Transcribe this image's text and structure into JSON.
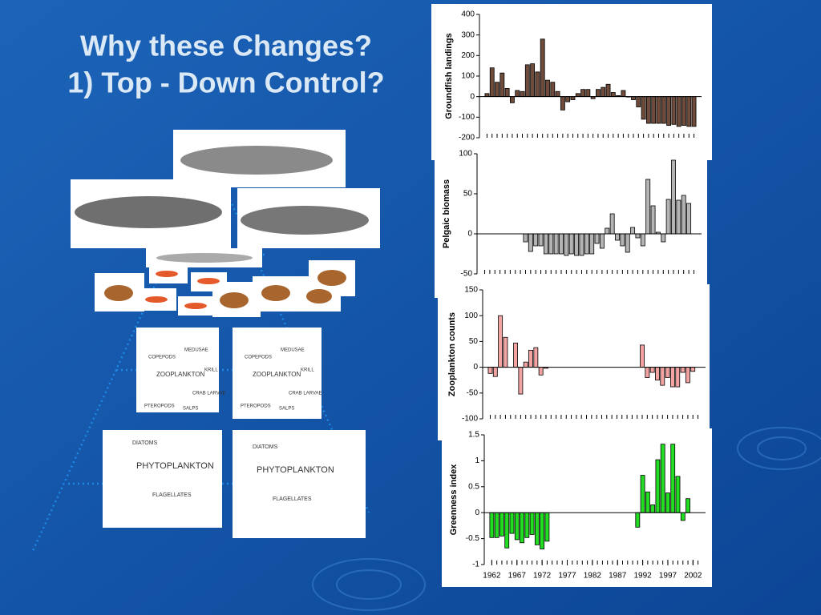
{
  "slide": {
    "title_lines": [
      "Why these Changes?",
      "1) Top - Down Control?"
    ]
  },
  "illustrations": {
    "zooplankton": [
      "MEDUSAE",
      "COPEPODS",
      "KRILL",
      "ZOOPLANKTON",
      "CRAB LARVAE",
      "PTEROPODS",
      "SALPS"
    ],
    "phytoplankton": [
      "DIATOMS",
      "PHYTOPLANKTON",
      "FLAGELLATES"
    ]
  },
  "chart_data": [
    {
      "type": "bar",
      "y_label": "Groundfish landings",
      "color": "#6e4b3a",
      "x": [
        1962,
        1963,
        1964,
        1965,
        1966,
        1967,
        1968,
        1969,
        1970,
        1971,
        1972,
        1973,
        1974,
        1975,
        1976,
        1977,
        1978,
        1979,
        1980,
        1981,
        1982,
        1983,
        1984,
        1985,
        1986,
        1987,
        1988,
        1989,
        1990,
        1991,
        1992,
        1993,
        1994,
        1995,
        1996,
        1997,
        1998,
        1999,
        2000,
        2001,
        2002,
        2003
      ],
      "values": [
        15,
        140,
        70,
        115,
        40,
        -30,
        30,
        25,
        155,
        160,
        120,
        280,
        80,
        70,
        25,
        -65,
        -25,
        -15,
        15,
        35,
        35,
        -10,
        35,
        45,
        60,
        20,
        5,
        30,
        0,
        -15,
        -50,
        -110,
        -130,
        -130,
        -130,
        -130,
        -140,
        -135,
        -145,
        -140,
        -145,
        -145
      ],
      "xlim": [
        1960.5,
        2004.5
      ],
      "ylim": [
        -200,
        400
      ],
      "yticks": [
        -200,
        -100,
        0,
        100,
        200,
        300,
        400
      ]
    },
    {
      "type": "bar",
      "y_label": "Pelgaic biomass",
      "color": "#b4b4b4",
      "x": [
        1962,
        1963,
        1964,
        1965,
        1966,
        1967,
        1968,
        1969,
        1970,
        1971,
        1972,
        1973,
        1974,
        1975,
        1976,
        1977,
        1978,
        1979,
        1980,
        1981,
        1982,
        1983,
        1984,
        1985,
        1986,
        1987,
        1988,
        1989,
        1990,
        1991,
        1992,
        1993,
        1994,
        1995,
        1996,
        1997,
        1998,
        1999,
        2000,
        2001,
        2002,
        2003
      ],
      "values": [
        null,
        null,
        null,
        null,
        null,
        null,
        null,
        null,
        -10,
        -22,
        -15,
        -15,
        -25,
        -25,
        -25,
        -25,
        -27,
        -25,
        -27,
        -27,
        -25,
        -25,
        -12,
        -18,
        7,
        25,
        -8,
        -15,
        -23,
        8,
        -5,
        -15,
        68,
        35,
        2,
        -10,
        43,
        92,
        42,
        48,
        38,
        null
      ],
      "xlim": [
        1960.5,
        2004.5
      ],
      "ylim": [
        -50,
        100
      ],
      "yticks": [
        -50,
        0,
        50,
        100
      ]
    },
    {
      "type": "bar",
      "y_label": "Zooplankton counts",
      "color": "#f4a3a3",
      "x": [
        1962,
        1963,
        1964,
        1965,
        1966,
        1967,
        1968,
        1969,
        1970,
        1971,
        1972,
        1973,
        1974,
        1975,
        1976,
        1977,
        1978,
        1979,
        1980,
        1981,
        1982,
        1983,
        1984,
        1985,
        1986,
        1987,
        1988,
        1989,
        1990,
        1991,
        1992,
        1993,
        1994,
        1995,
        1996,
        1997,
        1998,
        1999,
        2000,
        2001,
        2002,
        2003
      ],
      "values": [
        -12,
        -18,
        100,
        58,
        null,
        47,
        -52,
        10,
        33,
        38,
        -15,
        -2,
        null,
        null,
        null,
        null,
        null,
        null,
        null,
        null,
        null,
        null,
        null,
        null,
        null,
        null,
        null,
        null,
        null,
        null,
        43,
        -20,
        -10,
        -25,
        -35,
        -20,
        -38,
        -38,
        -10,
        -30,
        -8,
        null
      ],
      "xlim": [
        1960.5,
        2004.5
      ],
      "ylim": [
        -100,
        150
      ],
      "yticks": [
        -100,
        -50,
        0,
        50,
        100,
        150
      ]
    },
    {
      "type": "bar",
      "y_label": "Greenness index",
      "color": "#22dd22",
      "x": [
        1962,
        1963,
        1964,
        1965,
        1966,
        1967,
        1968,
        1969,
        1970,
        1971,
        1972,
        1973,
        1974,
        1975,
        1976,
        1977,
        1978,
        1979,
        1980,
        1981,
        1982,
        1983,
        1984,
        1985,
        1986,
        1987,
        1988,
        1989,
        1990,
        1991,
        1992,
        1993,
        1994,
        1995,
        1996,
        1997,
        1998,
        1999,
        2000,
        2001,
        2002,
        2003
      ],
      "values": [
        -0.48,
        -0.48,
        -0.45,
        -0.68,
        -0.4,
        -0.52,
        -0.58,
        -0.48,
        -0.42,
        -0.62,
        -0.7,
        -0.55,
        null,
        null,
        null,
        null,
        null,
        null,
        null,
        null,
        null,
        null,
        null,
        null,
        null,
        null,
        null,
        null,
        null,
        -0.28,
        0.72,
        0.4,
        0.15,
        1.02,
        1.32,
        0.38,
        1.32,
        0.7,
        -0.15,
        0.27,
        null,
        null
      ],
      "xlim": [
        1960.5,
        2004.5
      ],
      "ylim": [
        -1,
        1.5
      ],
      "yticks": [
        -1,
        -0.5,
        0,
        0.5,
        1,
        1.5
      ],
      "xticks": [
        1962,
        1967,
        1972,
        1977,
        1982,
        1987,
        1992,
        1997,
        2002
      ]
    }
  ]
}
